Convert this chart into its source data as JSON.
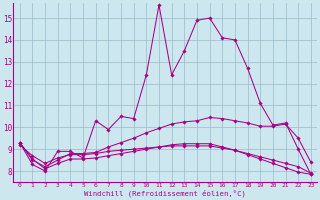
{
  "xlabel": "Windchill (Refroidissement éolien,°C)",
  "bg_color": "#cce8ee",
  "line_color": "#aa0088",
  "grid_color": "#99bbcc",
  "xlim": [
    -0.5,
    23.5
  ],
  "ylim": [
    7.5,
    15.7
  ],
  "yticks": [
    8,
    9,
    10,
    11,
    12,
    13,
    14,
    15
  ],
  "xticks": [
    0,
    1,
    2,
    3,
    4,
    5,
    6,
    7,
    8,
    9,
    10,
    11,
    12,
    13,
    14,
    15,
    16,
    17,
    18,
    19,
    20,
    21,
    22,
    23
  ],
  "lines": [
    [
      9.3,
      8.3,
      8.0,
      8.9,
      8.9,
      8.6,
      10.3,
      9.9,
      10.5,
      10.4,
      12.4,
      15.6,
      12.4,
      13.5,
      14.9,
      15.0,
      14.1,
      14.0,
      12.7,
      11.1,
      10.1,
      10.2,
      9.0,
      7.85
    ],
    [
      9.3,
      8.5,
      8.2,
      8.5,
      8.8,
      8.8,
      8.85,
      9.1,
      9.3,
      9.5,
      9.75,
      9.95,
      10.15,
      10.25,
      10.3,
      10.45,
      10.4,
      10.3,
      10.2,
      10.05,
      10.05,
      10.15,
      9.5,
      8.4
    ],
    [
      9.2,
      8.7,
      8.35,
      8.6,
      8.75,
      8.75,
      8.8,
      8.9,
      8.95,
      9.0,
      9.05,
      9.1,
      9.15,
      9.15,
      9.15,
      9.15,
      9.05,
      8.95,
      8.8,
      8.65,
      8.5,
      8.35,
      8.2,
      7.9
    ],
    [
      9.3,
      8.55,
      8.1,
      8.35,
      8.55,
      8.55,
      8.6,
      8.7,
      8.8,
      8.9,
      9.0,
      9.1,
      9.2,
      9.25,
      9.25,
      9.25,
      9.1,
      8.95,
      8.75,
      8.55,
      8.35,
      8.15,
      7.95,
      7.85
    ]
  ]
}
